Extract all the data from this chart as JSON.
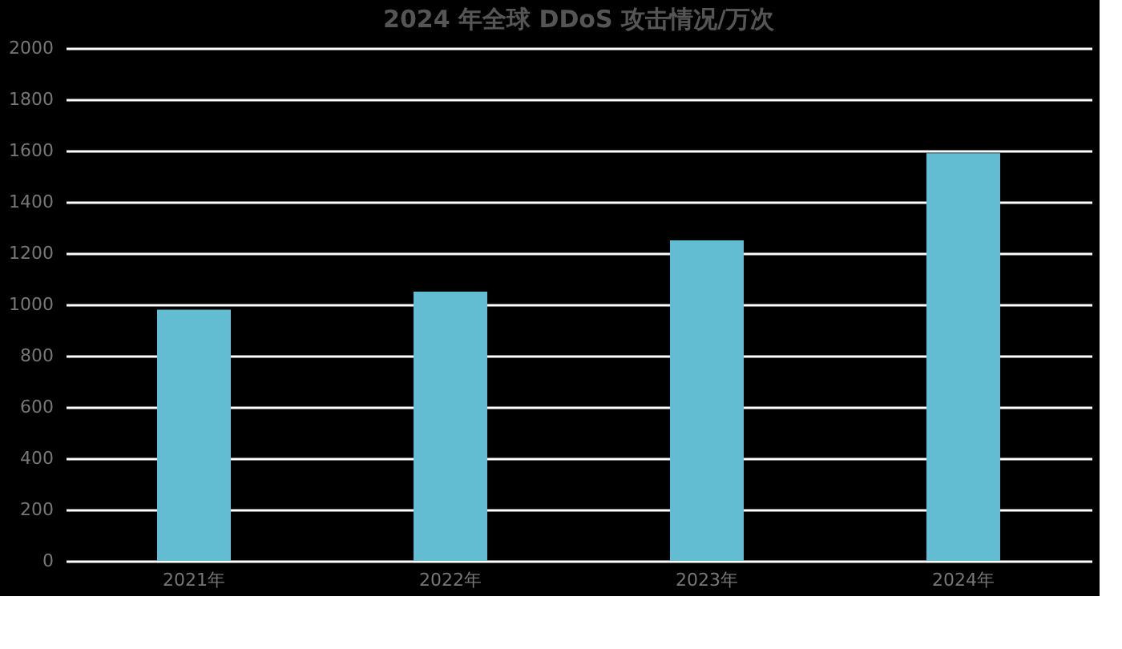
{
  "chart_data": {
    "type": "bar",
    "title": "2024 年全球 DDoS 攻击情况/万次",
    "categories": [
      "2021年",
      "2022年",
      "2023年",
      "2024年"
    ],
    "values": [
      980,
      1050,
      1250,
      1590
    ],
    "color": "#62bdd3",
    "ylim": [
      0,
      2000
    ],
    "yticks": [
      0,
      200,
      400,
      600,
      800,
      1000,
      1200,
      1400,
      1600,
      1800,
      2000
    ],
    "grid": "y"
  }
}
